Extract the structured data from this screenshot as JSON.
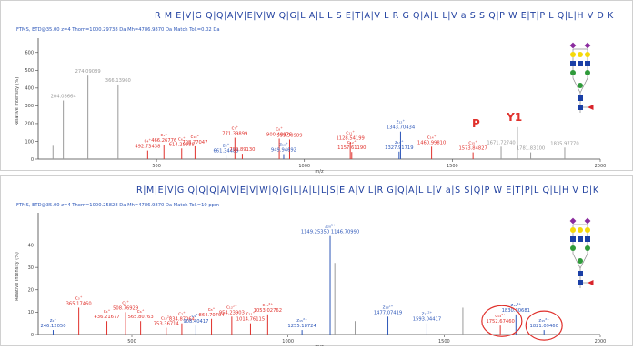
{
  "colors": {
    "fragment_b": "#e0312c",
    "fragment_y": "#2c56b8",
    "peak_grey": "#9a9a9a",
    "sequence": "#1f3f9f",
    "axis": "#444444",
    "circle": "#e0312c",
    "glycan_purple": "#8a2b9e",
    "glycan_yellow": "#f5d90a",
    "glycan_green": "#2f9a3a",
    "glycan_blue": "#1a3fa6",
    "glycan_red": "#d8232a"
  },
  "chart_data": [
    {
      "type": "bar",
      "panel": "top",
      "sequence": "R M E|V|G Q|Q|A|V|E|V|W Q|G|L A|L L S E|T|A|V L R G Q|A|L L|V a S S Q|P W E|T|P L Q|L|H V D K",
      "caption": "FTMS, ETD@35.00 z=4 Thom=1000.29738 Da Mh=4786.9870 Da Match Tol.=0.02 Da",
      "xlabel": "m/z",
      "ylabel": "Relative Intensity (%)",
      "xlim": [
        100,
        2000
      ],
      "ylim": [
        0,
        650
      ],
      "x_ticks": [
        {
          "label": "500",
          "value": 500
        },
        {
          "label": "1000",
          "value": 1000
        },
        {
          "label": "1500",
          "value": 1500
        },
        {
          "label": "2000",
          "value": 2000
        }
      ],
      "y_ticks": [
        {
          "label": "0",
          "value": 0
        },
        {
          "label": "100",
          "value": 100
        },
        {
          "label": "200",
          "value": 200
        },
        {
          "label": "300",
          "value": 300
        },
        {
          "label": "400",
          "value": 400
        },
        {
          "label": "500",
          "value": 500
        },
        {
          "label": "600",
          "value": 600
        }
      ],
      "peaks": [
        {
          "x": 150,
          "y": 75,
          "kind": "grey",
          "label": ""
        },
        {
          "x": 185,
          "y": 330,
          "kind": "grey",
          "label": "204.08664"
        },
        {
          "x": 268,
          "y": 470,
          "kind": "grey",
          "label": "274.09089"
        },
        {
          "x": 370,
          "y": 420,
          "kind": "grey",
          "label": "366.13960"
        },
        {
          "x": 470,
          "y": 48,
          "kind": "b",
          "label": "c₄⁺ 492.73438"
        },
        {
          "x": 525,
          "y": 82,
          "kind": "b",
          "label": "c₃⁺ 466.26776"
        },
        {
          "x": 585,
          "y": 60,
          "kind": "b",
          "label": "c₆⁺ 614.29988"
        },
        {
          "x": 630,
          "y": 72,
          "kind": "b",
          "label": "c₁₀⁺ 708.77047"
        },
        {
          "x": 735,
          "y": 24,
          "kind": "y",
          "label": "z₆⁺ 661.34489"
        },
        {
          "x": 765,
          "y": 120,
          "kind": "b",
          "label": "c₇⁺ 771.39899"
        },
        {
          "x": 790,
          "y": 30,
          "kind": "b",
          "label": "799.89130"
        },
        {
          "x": 915,
          "y": 115,
          "kind": "b",
          "label": "c₈⁺ 900.48976"
        },
        {
          "x": 950,
          "y": 110,
          "kind": "b",
          "label": "999.50989"
        },
        {
          "x": 930,
          "y": 28,
          "kind": "y",
          "label": "z₁₀⁺ 949.94692"
        },
        {
          "x": 1155,
          "y": 95,
          "kind": "b",
          "label": "c₁₁⁺ 1128.54199"
        },
        {
          "x": 1160,
          "y": 40,
          "kind": "b",
          "label": "c₁₂⁺ 1157.61190"
        },
        {
          "x": 1325,
          "y": 155,
          "kind": "y",
          "label": "z₁₂⁺ 1343.70434"
        },
        {
          "x": 1320,
          "y": 42,
          "kind": "y",
          "label": "z₁₃⁺ 1327.91719"
        },
        {
          "x": 1430,
          "y": 70,
          "kind": "b",
          "label": "c₁₄⁺ 1460.99810"
        },
        {
          "x": 1570,
          "y": 38,
          "kind": "b",
          "label": "c₁₅⁺ 1573.84827"
        },
        {
          "x": 1665,
          "y": 70,
          "kind": "grey",
          "label": "1671.72740"
        },
        {
          "x": 1720,
          "y": 180,
          "kind": "grey",
          "label": ""
        },
        {
          "x": 1765,
          "y": 38,
          "kind": "grey",
          "label": "1781.83100"
        },
        {
          "x": 1880,
          "y": 65,
          "kind": "grey",
          "label": "1835.97770"
        }
      ],
      "annotations": [
        {
          "text": "P",
          "x": 1580,
          "y": 180
        },
        {
          "text": "Y1",
          "x": 1710,
          "y": 215
        }
      ]
    },
    {
      "type": "bar",
      "panel": "bottom",
      "sequence": "R|M|E|V|G Q|Q|Q|A|V|E|V|W|Q|G|L|A|L|L|S|E A|V L|R G|Q|A|L L|V a|S S|Q|P W E|T|P|L Q|L|H V D|K",
      "caption": "FTMS, ETD@35.00 z=4 Thom=1000.25828 Da Mh=4786.9870 Da Match Tol.=10 ppm",
      "xlabel": "m/z",
      "ylabel": "Relative Intensity (%)",
      "xlim": [
        200,
        2000
      ],
      "ylim": [
        0,
        52
      ],
      "x_ticks": [
        {
          "label": "500",
          "value": 500
        },
        {
          "label": "1000",
          "value": 1000
        },
        {
          "label": "1500",
          "value": 1500
        },
        {
          "label": "2000",
          "value": 2000
        }
      ],
      "y_ticks": [
        {
          "label": "0",
          "value": 0
        },
        {
          "label": "10",
          "value": 10
        },
        {
          "label": "20",
          "value": 20
        },
        {
          "label": "30",
          "value": 30
        },
        {
          "label": "40",
          "value": 40
        }
      ],
      "peaks": [
        {
          "x": 248,
          "y": 2,
          "kind": "y",
          "label": "z₂⁺ 246.12050"
        },
        {
          "x": 330,
          "y": 12,
          "kind": "b",
          "label": "c₃⁺ 365.17460"
        },
        {
          "x": 420,
          "y": 6,
          "kind": "b",
          "label": "c₄⁺ 436.21677"
        },
        {
          "x": 480,
          "y": 10,
          "kind": "b",
          "label": "c₅⁺ 508.76929"
        },
        {
          "x": 528,
          "y": 6,
          "kind": "b",
          "label": "c₆⁺ 565.80763"
        },
        {
          "x": 610,
          "y": 3,
          "kind": "b",
          "label": "c₁₀²⁺ 753.36714"
        },
        {
          "x": 660,
          "y": 5,
          "kind": "b",
          "label": "c₇⁺ 834.87064"
        },
        {
          "x": 705,
          "y": 4,
          "kind": "y",
          "label": "c₉²⁺ 908.40417"
        },
        {
          "x": 755,
          "y": 7,
          "kind": "b",
          "label": "c₈⁺ 864.70704"
        },
        {
          "x": 820,
          "y": 8,
          "kind": "b",
          "label": "c₁₂²⁺ 954.23903"
        },
        {
          "x": 880,
          "y": 5,
          "kind": "b",
          "label": "c₁₁⁺ 1014.76115"
        },
        {
          "x": 935,
          "y": 9,
          "kind": "b",
          "label": "c₁₃²⁺ 1053.02762"
        },
        {
          "x": 1045,
          "y": 2,
          "kind": "y",
          "label": "z₁₅²⁺ 1255.18724"
        },
        {
          "x": 1135,
          "y": 44,
          "kind": "y",
          "label": "z₂₀⁵⁺ 1149.25350 1146.70990"
        },
        {
          "x": 1150,
          "y": 32,
          "kind": "grey",
          "label": ""
        },
        {
          "x": 1215,
          "y": 6,
          "kind": "grey",
          "label": ""
        },
        {
          "x": 1320,
          "y": 8,
          "kind": "y",
          "label": "z₁₈²⁺ 1477.07419"
        },
        {
          "x": 1445,
          "y": 5,
          "kind": "y",
          "label": "z₁₇²⁺ 1593.04417"
        },
        {
          "x": 1560,
          "y": 12,
          "kind": "grey",
          "label": ""
        },
        {
          "x": 1680,
          "y": 4,
          "kind": "b",
          "label": "c₁₄²⁺ 1752.67460"
        },
        {
          "x": 1730,
          "y": 9,
          "kind": "y",
          "label": "z₁₄²⁺ 1830.30681"
        },
        {
          "x": 1820,
          "y": 2,
          "kind": "y",
          "label": "z₁₅²⁺ 1821.09460"
        }
      ]
    }
  ]
}
